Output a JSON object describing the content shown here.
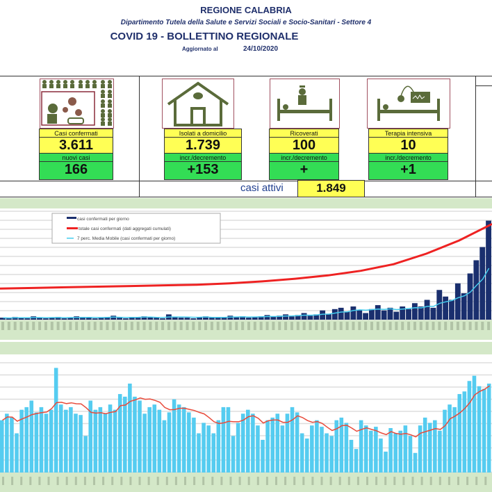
{
  "header": {
    "region": "REGIONE CALABRIA",
    "department": "Dipartimento Tutela della Salute e Servizi Sociali e Socio-Sanitari - Settore 4",
    "title": "COVID 19 - BOLLETTINO REGIONALE",
    "updated_label": "Aggiornato al",
    "updated_date": "24/10/2020"
  },
  "cards": [
    {
      "icon": "people-virus-icon",
      "label": "Casi confermati",
      "value": "3.611",
      "delta_label": "nuovi casi",
      "delta": "166"
    },
    {
      "icon": "house-icon",
      "label": "Isolati a domicilio",
      "value": "1.739",
      "delta_label": "incr./decremento",
      "delta": "+153"
    },
    {
      "icon": "hospital-bed-icon",
      "label": "Ricoverati",
      "value": "100",
      "delta_label": "incr./decremento",
      "delta": "+"
    },
    {
      "icon": "icu-bed-icon",
      "label": "Terapia intensiva",
      "value": "10",
      "delta_label": "incr./decremento",
      "delta": "+1"
    }
  ],
  "active": {
    "label": "casi attivi",
    "value": "1.849"
  },
  "colors": {
    "bars_daily": "#1a2f6e",
    "cumulative": "#ee2222",
    "moving_avg": "#44ccee",
    "bars_bottom": "#55ccf0",
    "line_bottom": "#e84a3a",
    "band": "#d4e8c8",
    "yellow": "#ffff55",
    "green": "#33dd55"
  },
  "chart_data": [
    {
      "type": "bar",
      "legend_placement": "top-left",
      "grid": true,
      "series": [
        {
          "name": "casi confermati per giorno",
          "type": "bar",
          "values": [
            3,
            2,
            4,
            3,
            2,
            5,
            3,
            2,
            3,
            4,
            2,
            3,
            5,
            4,
            3,
            2,
            3,
            4,
            6,
            3,
            2,
            4,
            3,
            5,
            4,
            3,
            2,
            8,
            4,
            3,
            3,
            2,
            4,
            5,
            3,
            4,
            3,
            6,
            4,
            5,
            3,
            4,
            5,
            7,
            5,
            6,
            8,
            5,
            7,
            10,
            6,
            8,
            14,
            9,
            16,
            18,
            12,
            20,
            15,
            10,
            16,
            22,
            14,
            18,
            12,
            20,
            16,
            25,
            20,
            30,
            18,
            45,
            35,
            30,
            55,
            40,
            70,
            90,
            110,
            150
          ]
        },
        {
          "name": "totale casi confermati (dati aggregati cumulati)",
          "type": "line",
          "values": [
            47,
            48,
            49,
            50,
            51,
            52,
            53,
            55,
            58,
            62,
            67,
            74,
            84,
            100,
            120,
            145
          ]
        },
        {
          "name": "7 perc. Media Mobile (casi confermati per giorno)",
          "type": "line",
          "values": []
        }
      ]
    },
    {
      "type": "bar",
      "grid": true,
      "series": [
        {
          "type": "bar",
          "values": [
            40,
            45,
            42,
            30,
            48,
            50,
            55,
            46,
            50,
            45,
            48,
            80,
            52,
            48,
            50,
            45,
            44,
            28,
            55,
            48,
            50,
            45,
            52,
            48,
            60,
            58,
            68,
            58,
            55,
            45,
            50,
            52,
            48,
            40,
            46,
            56,
            52,
            50,
            46,
            42,
            30,
            38,
            36,
            30,
            40,
            50,
            50,
            28,
            38,
            45,
            48,
            45,
            36,
            25,
            40,
            42,
            45,
            36,
            45,
            50,
            46,
            30,
            26,
            36,
            40,
            35,
            30,
            28,
            40,
            42,
            38,
            25,
            18,
            40,
            36,
            32,
            35,
            26,
            16,
            34,
            30,
            32,
            36,
            28,
            15,
            36,
            42,
            38,
            40,
            32,
            48,
            52,
            50,
            60,
            62,
            70,
            74,
            66,
            64,
            68
          ]
        },
        {
          "type": "line",
          "values": []
        }
      ]
    }
  ]
}
